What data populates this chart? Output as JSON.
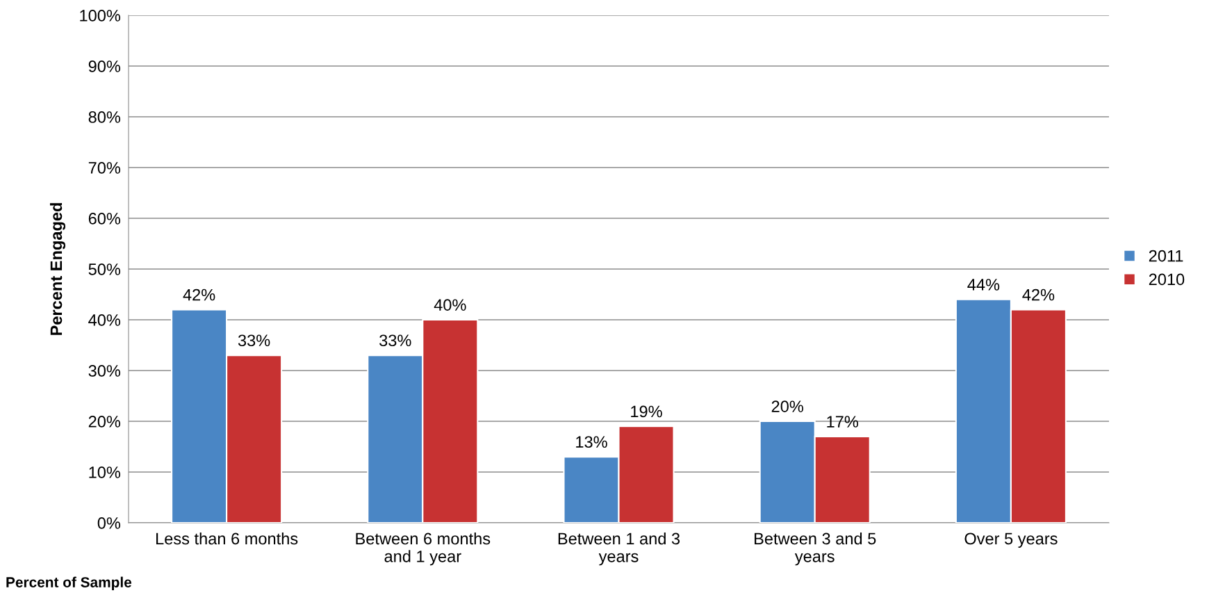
{
  "chart_data": {
    "type": "bar",
    "ylabel": "Percent Engaged",
    "categories": [
      "Less than 6 months",
      "Between 6 months\nand 1 year",
      "Between 1 and 3\nyears",
      "Between 3 and 5\nyears",
      "Over 5 years"
    ],
    "series": [
      {
        "name": "2011",
        "color": "#4a86c5",
        "values": [
          42,
          33,
          13,
          20,
          44
        ]
      },
      {
        "name": "2010",
        "color": "#c73232",
        "values": [
          33,
          40,
          19,
          17,
          42
        ]
      }
    ],
    "ylim": [
      0,
      100
    ],
    "yticks": [
      {
        "value": 0,
        "label": "0%"
      },
      {
        "value": 10,
        "label": "10%"
      },
      {
        "value": 20,
        "label": "20%"
      },
      {
        "value": 30,
        "label": "30%"
      },
      {
        "value": 40,
        "label": "40%"
      },
      {
        "value": 50,
        "label": "50%"
      },
      {
        "value": 60,
        "label": "60%"
      },
      {
        "value": 70,
        "label": "70%"
      },
      {
        "value": 80,
        "label": "80%"
      },
      {
        "value": 90,
        "label": "90%"
      },
      {
        "value": 100,
        "label": "100%"
      }
    ],
    "grid": "y",
    "legend": "right",
    "value_labels": [
      [
        "42%",
        "33%",
        "13%",
        "20%",
        "44%"
      ],
      [
        "33%",
        "40%",
        "19%",
        "17%",
        "42%"
      ]
    ],
    "annotations": [
      "Percent of Sample"
    ]
  }
}
